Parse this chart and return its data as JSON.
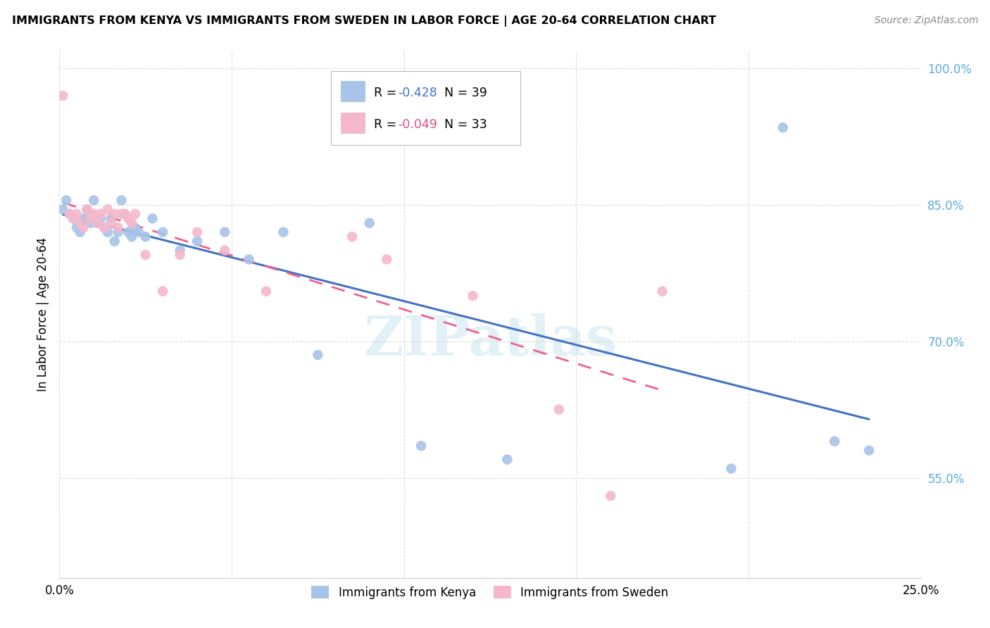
{
  "title": "IMMIGRANTS FROM KENYA VS IMMIGRANTS FROM SWEDEN IN LABOR FORCE | AGE 20-64 CORRELATION CHART",
  "source": "Source: ZipAtlas.com",
  "ylabel": "In Labor Force | Age 20-64",
  "xlim": [
    0.0,
    0.25
  ],
  "ylim": [
    0.44,
    1.02
  ],
  "xticks": [
    0.0,
    0.05,
    0.1,
    0.15,
    0.2,
    0.25
  ],
  "xtick_labels": [
    "0.0%",
    "",
    "",
    "",
    "",
    "25.0%"
  ],
  "ytick_labels_right": [
    "55.0%",
    "70.0%",
    "85.0%",
    "100.0%"
  ],
  "yticks_right": [
    0.55,
    0.7,
    0.85,
    1.0
  ],
  "watermark": "ZIPatlas",
  "legend_r1": "-0.428",
  "legend_n1": "39",
  "legend_r2": "-0.049",
  "legend_n2": "33",
  "legend_label1": "Immigrants from Kenya",
  "legend_label2": "Immigrants from Sweden",
  "blue_color": "#a8c4e8",
  "pink_color": "#f5b8cb",
  "blue_line_color": "#4472c4",
  "pink_line_color": "#f06090",
  "blue_r_color": "#4472c4",
  "pink_r_color": "#e05080",
  "kenya_x": [
    0.001,
    0.002,
    0.003,
    0.004,
    0.005,
    0.006,
    0.007,
    0.008,
    0.009,
    0.01,
    0.011,
    0.012,
    0.013,
    0.014,
    0.015,
    0.016,
    0.017,
    0.018,
    0.019,
    0.02,
    0.021,
    0.022,
    0.023,
    0.025,
    0.027,
    0.03,
    0.035,
    0.04,
    0.048,
    0.055,
    0.065,
    0.075,
    0.09,
    0.105,
    0.13,
    0.195,
    0.21,
    0.225,
    0.235
  ],
  "kenya_y": [
    0.845,
    0.855,
    0.84,
    0.835,
    0.825,
    0.82,
    0.835,
    0.845,
    0.83,
    0.855,
    0.83,
    0.835,
    0.825,
    0.82,
    0.835,
    0.81,
    0.82,
    0.855,
    0.84,
    0.82,
    0.815,
    0.825,
    0.82,
    0.815,
    0.835,
    0.82,
    0.8,
    0.81,
    0.82,
    0.79,
    0.82,
    0.685,
    0.83,
    0.585,
    0.57,
    0.56,
    0.935,
    0.59,
    0.58
  ],
  "sweden_x": [
    0.001,
    0.003,
    0.004,
    0.005,
    0.006,
    0.007,
    0.008,
    0.009,
    0.01,
    0.011,
    0.012,
    0.013,
    0.014,
    0.015,
    0.016,
    0.017,
    0.018,
    0.019,
    0.02,
    0.021,
    0.022,
    0.025,
    0.03,
    0.035,
    0.04,
    0.048,
    0.06,
    0.085,
    0.095,
    0.12,
    0.145,
    0.16,
    0.175
  ],
  "sweden_y": [
    0.97,
    0.84,
    0.835,
    0.84,
    0.83,
    0.825,
    0.845,
    0.835,
    0.84,
    0.83,
    0.84,
    0.825,
    0.845,
    0.83,
    0.84,
    0.825,
    0.84,
    0.84,
    0.835,
    0.83,
    0.84,
    0.795,
    0.755,
    0.795,
    0.82,
    0.8,
    0.755,
    0.815,
    0.79,
    0.75,
    0.625,
    0.53,
    0.755
  ]
}
